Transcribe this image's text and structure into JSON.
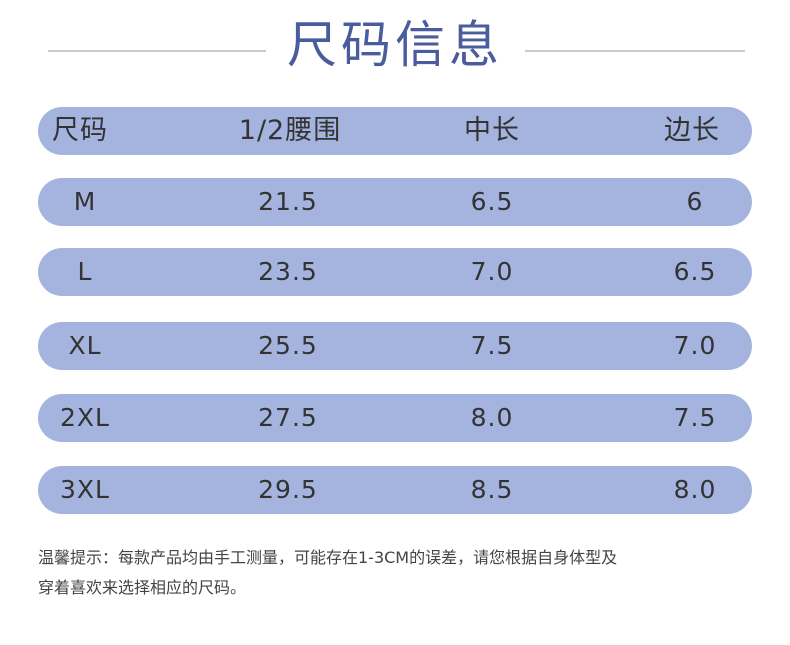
{
  "header": {
    "title": "尺码信息"
  },
  "table": {
    "columns": [
      "尺码",
      "1/2腰围",
      "中长",
      "边长"
    ],
    "rows": [
      [
        "M",
        "21.5",
        "6.5",
        "6"
      ],
      [
        "L",
        "23.5",
        "7.0",
        "6.5"
      ],
      [
        "XL",
        "25.5",
        "7.5",
        "7.0"
      ],
      [
        "2XL",
        "27.5",
        "8.0",
        "7.5"
      ],
      [
        "3XL",
        "29.5",
        "8.5",
        "8.0"
      ]
    ]
  },
  "note": {
    "lines": [
      "温馨提示：每款产品均由手工测量，可能存在1-3CM的误差，请您根据自身体型及",
      "穿着喜欢来选择相应的尺码。"
    ]
  }
}
